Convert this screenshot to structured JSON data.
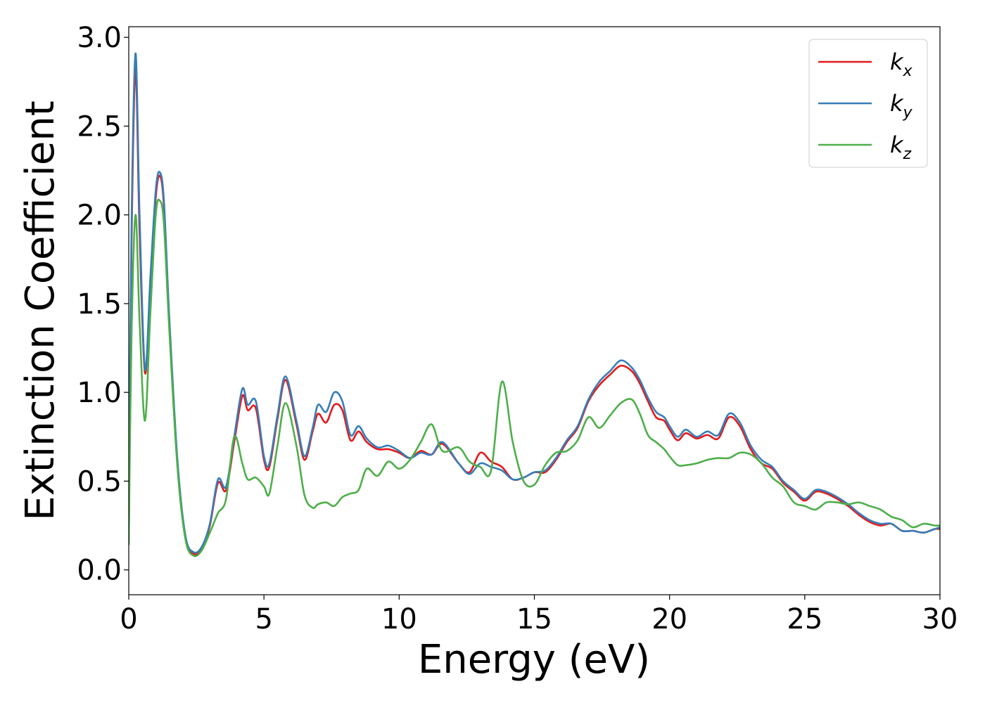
{
  "chart_data": {
    "type": "line",
    "xlabel": "Energy (eV)",
    "ylabel": "Extinction Coefficient",
    "xlim": [
      0,
      30
    ],
    "ylim": [
      -0.14,
      3.06
    ],
    "xticks": [
      0,
      5,
      10,
      15,
      20,
      25,
      30
    ],
    "xtick_labels": [
      "0",
      "5",
      "10",
      "15",
      "20",
      "25",
      "30"
    ],
    "yticks": [
      0.0,
      0.5,
      1.0,
      1.5,
      2.0,
      2.5,
      3.0
    ],
    "ytick_labels": [
      "0.0",
      "0.5",
      "1.0",
      "1.5",
      "2.0",
      "2.5",
      "3.0"
    ],
    "grid": false,
    "legend_position": "top-right",
    "series": [
      {
        "name": "k_x",
        "label_base": "k",
        "label_sub": "x",
        "color": "#e41a1c",
        "x": [
          0,
          0.1,
          0.25,
          0.4,
          0.6,
          0.8,
          1.0,
          1.15,
          1.3,
          1.5,
          1.8,
          2.1,
          2.4,
          2.7,
          3.0,
          3.3,
          3.6,
          3.9,
          4.2,
          4.4,
          4.7,
          5.0,
          5.2,
          5.5,
          5.8,
          6.2,
          6.5,
          6.8,
          7.0,
          7.3,
          7.6,
          7.9,
          8.2,
          8.5,
          8.8,
          9.2,
          9.6,
          10.0,
          10.4,
          10.8,
          11.2,
          11.6,
          12.2,
          12.6,
          13.0,
          13.4,
          13.8,
          14.2,
          14.6,
          15.0,
          15.4,
          15.8,
          16.2,
          16.6,
          17.0,
          17.4,
          17.8,
          18.2,
          18.6,
          18.9,
          19.2,
          19.5,
          19.8,
          20.0,
          20.3,
          20.6,
          21.0,
          21.4,
          21.8,
          22.2,
          22.6,
          23.0,
          23.4,
          23.8,
          24.2,
          24.6,
          25.0,
          25.4,
          25.8,
          26.2,
          26.6,
          27.0,
          27.4,
          27.8,
          28.2,
          28.6,
          29.0,
          29.4,
          29.8,
          30.0
        ],
        "y": [
          0.15,
          1.8,
          2.82,
          1.9,
          1.11,
          1.6,
          2.1,
          2.22,
          2.05,
          1.4,
          0.6,
          0.18,
          0.09,
          0.12,
          0.25,
          0.49,
          0.45,
          0.72,
          0.98,
          0.9,
          0.91,
          0.62,
          0.58,
          0.85,
          1.07,
          0.82,
          0.62,
          0.78,
          0.88,
          0.83,
          0.93,
          0.9,
          0.73,
          0.78,
          0.72,
          0.68,
          0.68,
          0.66,
          0.63,
          0.67,
          0.65,
          0.71,
          0.6,
          0.55,
          0.66,
          0.61,
          0.58,
          0.51,
          0.52,
          0.55,
          0.55,
          0.62,
          0.72,
          0.8,
          0.95,
          1.04,
          1.1,
          1.15,
          1.12,
          1.05,
          0.95,
          0.86,
          0.84,
          0.79,
          0.73,
          0.77,
          0.74,
          0.76,
          0.74,
          0.86,
          0.81,
          0.68,
          0.6,
          0.57,
          0.49,
          0.44,
          0.39,
          0.44,
          0.43,
          0.4,
          0.36,
          0.31,
          0.27,
          0.25,
          0.26,
          0.22,
          0.22,
          0.21,
          0.23,
          0.23
        ]
      },
      {
        "name": "k_y",
        "label_base": "k",
        "label_sub": "y",
        "color": "#377eb8",
        "x": [
          0,
          0.1,
          0.25,
          0.4,
          0.6,
          0.8,
          1.0,
          1.15,
          1.3,
          1.5,
          1.8,
          2.1,
          2.4,
          2.7,
          3.0,
          3.3,
          3.6,
          3.9,
          4.2,
          4.4,
          4.7,
          5.0,
          5.2,
          5.5,
          5.8,
          6.2,
          6.5,
          6.8,
          7.0,
          7.3,
          7.6,
          7.9,
          8.2,
          8.5,
          8.8,
          9.2,
          9.6,
          10.0,
          10.4,
          10.8,
          11.2,
          11.6,
          12.2,
          12.6,
          13.0,
          13.4,
          13.8,
          14.2,
          14.6,
          15.0,
          15.4,
          15.8,
          16.2,
          16.6,
          17.0,
          17.4,
          17.8,
          18.2,
          18.6,
          18.9,
          19.2,
          19.5,
          19.8,
          20.0,
          20.3,
          20.6,
          21.0,
          21.4,
          21.8,
          22.2,
          22.6,
          23.0,
          23.4,
          23.8,
          24.2,
          24.6,
          25.0,
          25.4,
          25.8,
          26.2,
          26.6,
          27.0,
          27.4,
          27.8,
          28.2,
          28.6,
          29.0,
          29.4,
          29.8,
          30.0
        ],
        "y": [
          0.16,
          1.9,
          2.91,
          2.0,
          1.13,
          1.65,
          2.14,
          2.24,
          2.08,
          1.42,
          0.62,
          0.19,
          0.1,
          0.13,
          0.26,
          0.51,
          0.47,
          0.75,
          1.02,
          0.93,
          0.95,
          0.64,
          0.6,
          0.87,
          1.09,
          0.84,
          0.64,
          0.8,
          0.93,
          0.89,
          1.0,
          0.95,
          0.76,
          0.81,
          0.74,
          0.69,
          0.7,
          0.67,
          0.63,
          0.66,
          0.65,
          0.72,
          0.6,
          0.54,
          0.6,
          0.58,
          0.56,
          0.51,
          0.52,
          0.55,
          0.56,
          0.63,
          0.73,
          0.81,
          0.96,
          1.06,
          1.12,
          1.18,
          1.14,
          1.07,
          0.97,
          0.89,
          0.86,
          0.81,
          0.75,
          0.79,
          0.75,
          0.78,
          0.76,
          0.88,
          0.83,
          0.7,
          0.62,
          0.58,
          0.5,
          0.45,
          0.4,
          0.45,
          0.44,
          0.41,
          0.37,
          0.32,
          0.28,
          0.26,
          0.26,
          0.22,
          0.22,
          0.21,
          0.23,
          0.24
        ]
      },
      {
        "name": "k_z",
        "label_base": "k",
        "label_sub": "z",
        "color": "#4daf4a",
        "x": [
          0,
          0.1,
          0.25,
          0.4,
          0.6,
          0.8,
          1.0,
          1.15,
          1.3,
          1.5,
          1.8,
          2.1,
          2.4,
          2.7,
          3.0,
          3.3,
          3.6,
          3.9,
          4.2,
          4.4,
          4.7,
          5.0,
          5.2,
          5.5,
          5.8,
          6.2,
          6.5,
          6.8,
          7.0,
          7.3,
          7.6,
          7.9,
          8.2,
          8.5,
          8.8,
          9.2,
          9.6,
          10.0,
          10.4,
          10.8,
          11.2,
          11.6,
          12.2,
          12.6,
          13.0,
          13.4,
          13.8,
          14.2,
          14.6,
          15.0,
          15.4,
          15.8,
          16.2,
          16.6,
          17.0,
          17.4,
          17.8,
          18.2,
          18.6,
          18.9,
          19.2,
          19.5,
          19.8,
          20.0,
          20.3,
          20.6,
          21.0,
          21.4,
          21.8,
          22.2,
          22.6,
          23.0,
          23.4,
          23.8,
          24.2,
          24.6,
          25.0,
          25.4,
          25.8,
          26.2,
          26.6,
          27.0,
          27.4,
          27.8,
          28.2,
          28.6,
          29.0,
          29.4,
          29.8,
          30.0
        ],
        "y": [
          0.14,
          1.3,
          2.0,
          1.4,
          0.84,
          1.45,
          2.0,
          2.08,
          1.95,
          1.35,
          0.58,
          0.17,
          0.08,
          0.11,
          0.21,
          0.32,
          0.4,
          0.75,
          0.6,
          0.51,
          0.52,
          0.47,
          0.43,
          0.7,
          0.94,
          0.7,
          0.42,
          0.35,
          0.37,
          0.38,
          0.36,
          0.41,
          0.43,
          0.45,
          0.57,
          0.53,
          0.61,
          0.57,
          0.62,
          0.72,
          0.82,
          0.67,
          0.69,
          0.61,
          0.58,
          0.56,
          1.06,
          0.72,
          0.5,
          0.48,
          0.59,
          0.66,
          0.67,
          0.73,
          0.86,
          0.8,
          0.87,
          0.94,
          0.96,
          0.88,
          0.76,
          0.72,
          0.68,
          0.64,
          0.59,
          0.59,
          0.6,
          0.62,
          0.63,
          0.63,
          0.66,
          0.65,
          0.6,
          0.52,
          0.47,
          0.38,
          0.36,
          0.34,
          0.38,
          0.38,
          0.37,
          0.38,
          0.36,
          0.34,
          0.3,
          0.28,
          0.24,
          0.26,
          0.25,
          0.25
        ]
      }
    ]
  }
}
